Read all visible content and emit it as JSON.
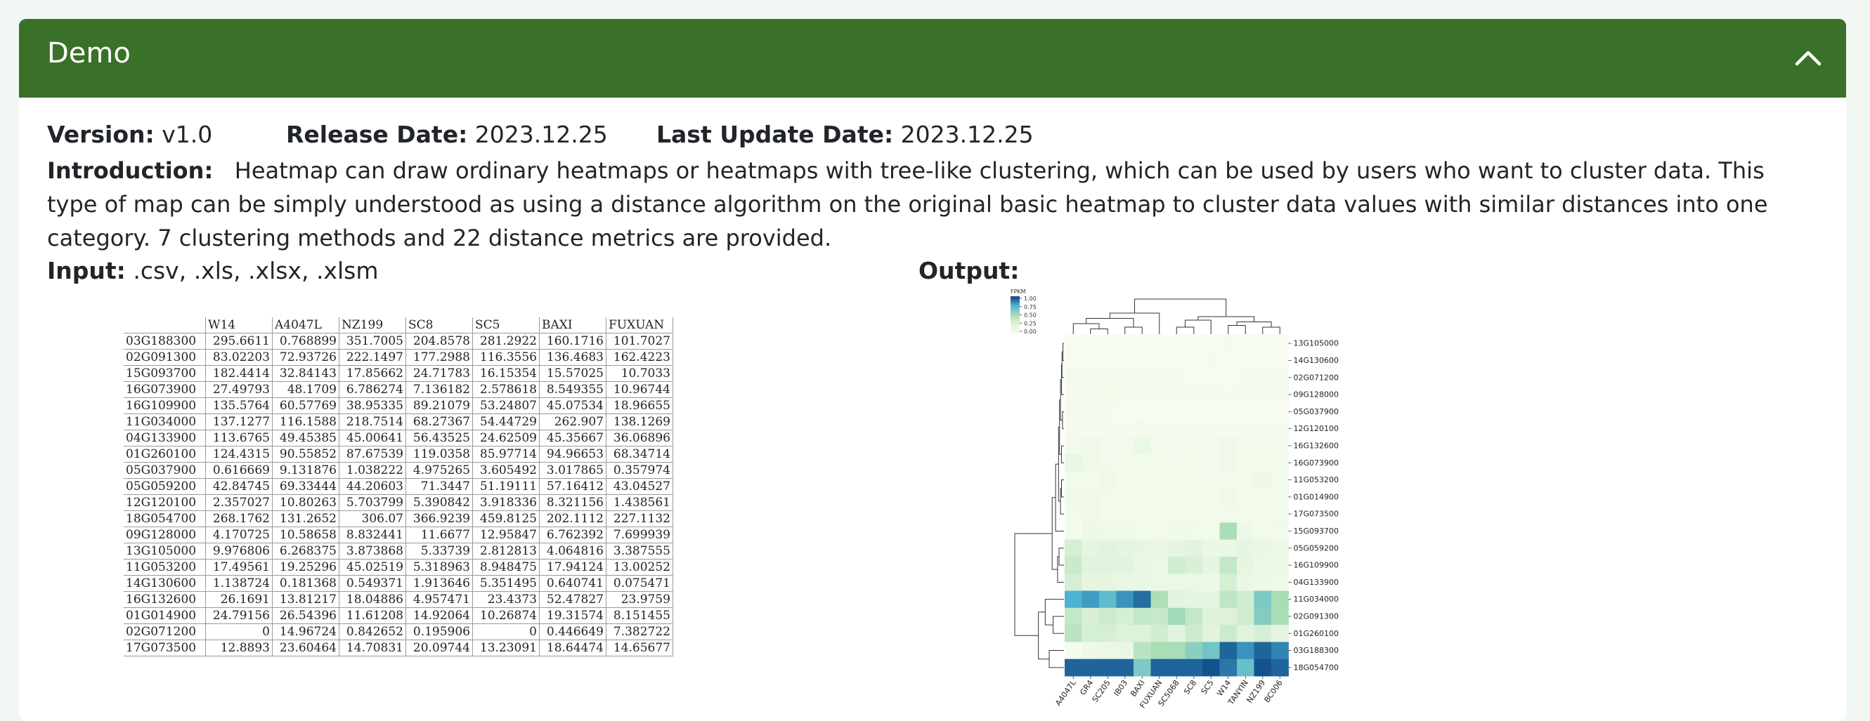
{
  "panel": {
    "title": "Demo"
  },
  "meta": {
    "version_label": "Version:",
    "version_value": "v1.0",
    "release_label": "Release Date:",
    "release_value": "2023.12.25",
    "update_label": "Last Update Date:",
    "update_value": "2023.12.25"
  },
  "intro": {
    "label": "Introduction:",
    "text": "Heatmap can draw ordinary heatmaps or heatmaps with tree-like clustering, which can be used by users who want to cluster data. This type of map can be simply understood as using a distance algorithm on the original basic heatmap to cluster data values with similar distances into one category. 7 clustering methods and 22 distance metrics are provided."
  },
  "input": {
    "label": "Input:",
    "formats": ".csv, .xls, .xlsx, .xlsm",
    "table": {
      "columns": [
        "W14",
        "A4047L",
        "NZ199",
        "SC8",
        "SC5",
        "BAXI",
        "FUXUAN"
      ],
      "rows": [
        [
          "03G188300",
          "295.6611",
          "0.768899",
          "351.7005",
          "204.8578",
          "281.2922",
          "160.1716",
          "101.7027"
        ],
        [
          "02G091300",
          "83.02203",
          "72.93726",
          "222.1497",
          "177.2988",
          "116.3556",
          "136.4683",
          "162.4223"
        ],
        [
          "15G093700",
          "182.4414",
          "32.84143",
          "17.85662",
          "24.71783",
          "16.15354",
          "15.57025",
          "10.7033"
        ],
        [
          "16G073900",
          "27.49793",
          "48.1709",
          "6.786274",
          "7.136182",
          "2.578618",
          "8.549355",
          "10.96744"
        ],
        [
          "16G109900",
          "135.5764",
          "60.57769",
          "38.95335",
          "89.21079",
          "53.24807",
          "45.07534",
          "18.96655"
        ],
        [
          "11G034000",
          "137.1277",
          "116.1588",
          "218.7514",
          "68.27367",
          "54.44729",
          "262.907",
          "138.1269"
        ],
        [
          "04G133900",
          "113.6765",
          "49.45385",
          "45.00641",
          "56.43525",
          "24.62509",
          "45.35667",
          "36.06896"
        ],
        [
          "01G260100",
          "124.4315",
          "90.55852",
          "87.67539",
          "119.0358",
          "85.97714",
          "94.96653",
          "68.34714"
        ],
        [
          "05G037900",
          "0.616669",
          "9.131876",
          "1.038222",
          "4.975265",
          "3.605492",
          "3.017865",
          "0.357974"
        ],
        [
          "05G059200",
          "42.84745",
          "69.33444",
          "44.20603",
          "71.3447",
          "51.19111",
          "57.16412",
          "43.04527"
        ],
        [
          "12G120100",
          "2.357027",
          "10.80263",
          "5.703799",
          "5.390842",
          "3.918336",
          "8.321156",
          "1.438561"
        ],
        [
          "18G054700",
          "268.1762",
          "131.2652",
          "306.07",
          "366.9239",
          "459.8125",
          "202.1112",
          "227.1132"
        ],
        [
          "09G128000",
          "4.170725",
          "10.58658",
          "8.832441",
          "11.6677",
          "12.95847",
          "6.762392",
          "7.699939"
        ],
        [
          "13G105000",
          "9.976806",
          "6.268375",
          "3.873868",
          "5.33739",
          "2.812813",
          "4.064816",
          "3.387555"
        ],
        [
          "11G053200",
          "17.49561",
          "19.25296",
          "45.02519",
          "5.318963",
          "8.948475",
          "17.94124",
          "13.00252"
        ],
        [
          "14G130600",
          "1.138724",
          "0.181368",
          "0.549371",
          "1.913646",
          "5.351495",
          "0.640741",
          "0.075471"
        ],
        [
          "16G132600",
          "26.1691",
          "13.81217",
          "18.04886",
          "4.957471",
          "23.4373",
          "52.47827",
          "23.9759"
        ],
        [
          "01G014900",
          "24.79156",
          "26.54396",
          "11.61208",
          "14.92064",
          "10.26874",
          "19.31574",
          "8.151455"
        ],
        [
          "02G071200",
          "0",
          "14.96724",
          "0.842652",
          "0.195906",
          "0",
          "0.446649",
          "7.382722"
        ],
        [
          "17G073500",
          "12.8893",
          "23.60464",
          "14.70831",
          "20.09744",
          "13.23091",
          "18.64474",
          "14.65677"
        ]
      ]
    }
  },
  "output": {
    "label": "Output:",
    "chart_data": {
      "type": "heatmap",
      "legend_title": "FPKM",
      "legend_ticks": [
        "1.00",
        "0.75",
        "0.50",
        "0.25",
        "0.00"
      ],
      "legend_placement": "top-left",
      "colormap": [
        "#f7fcf0",
        "#e0f3db",
        "#a8ddb5",
        "#4eb3d3",
        "#084081"
      ],
      "columns": [
        "A4047L",
        "GR4",
        "SC205",
        "IB03",
        "BAXI",
        "FUXUAN",
        "SC5068",
        "SC8",
        "SC5",
        "W14",
        "TANYIN",
        "NZ199",
        "BC006"
      ],
      "rows": [
        "13G105000",
        "14G130600",
        "02G071200",
        "09G128000",
        "05G037900",
        "12G120100",
        "16G132600",
        "16G073900",
        "11G053200",
        "01G014900",
        "17G073500",
        "15G093700",
        "05G059200",
        "16G109900",
        "04G133900",
        "11G034000",
        "02G091300",
        "01G260100",
        "03G188300",
        "18G054700"
      ],
      "values": [
        [
          0.01,
          0.01,
          0.01,
          0.01,
          0.01,
          0.01,
          0.01,
          0.01,
          0.01,
          0.02,
          0.01,
          0.01,
          0.01
        ],
        [
          0.01,
          0.01,
          0.01,
          0.01,
          0.01,
          0.01,
          0.01,
          0.01,
          0.02,
          0.01,
          0.01,
          0.01,
          0.01
        ],
        [
          0.05,
          0.02,
          0.03,
          0.02,
          0.02,
          0.03,
          0.02,
          0.01,
          0.01,
          0.01,
          0.02,
          0.02,
          0.02
        ],
        [
          0.02,
          0.02,
          0.03,
          0.03,
          0.02,
          0.02,
          0.03,
          0.03,
          0.03,
          0.02,
          0.02,
          0.03,
          0.02
        ],
        [
          0.03,
          0.02,
          0.02,
          0.01,
          0.01,
          0.01,
          0.01,
          0.01,
          0.01,
          0.01,
          0.01,
          0.01,
          0.01
        ],
        [
          0.02,
          0.02,
          0.02,
          0.02,
          0.03,
          0.02,
          0.02,
          0.02,
          0.02,
          0.02,
          0.02,
          0.02,
          0.02
        ],
        [
          0.05,
          0.08,
          0.05,
          0.06,
          0.12,
          0.06,
          0.05,
          0.04,
          0.06,
          0.08,
          0.06,
          0.06,
          0.05
        ],
        [
          0.15,
          0.08,
          0.06,
          0.05,
          0.04,
          0.04,
          0.03,
          0.03,
          0.02,
          0.08,
          0.04,
          0.03,
          0.04
        ],
        [
          0.05,
          0.06,
          0.08,
          0.06,
          0.05,
          0.06,
          0.06,
          0.03,
          0.03,
          0.06,
          0.05,
          0.1,
          0.05
        ],
        [
          0.07,
          0.08,
          0.06,
          0.06,
          0.06,
          0.05,
          0.06,
          0.05,
          0.04,
          0.08,
          0.05,
          0.04,
          0.06
        ],
        [
          0.05,
          0.08,
          0.06,
          0.06,
          0.06,
          0.06,
          0.06,
          0.06,
          0.05,
          0.05,
          0.06,
          0.05,
          0.06
        ],
        [
          0.04,
          0.1,
          0.08,
          0.07,
          0.05,
          0.05,
          0.07,
          0.06,
          0.05,
          0.48,
          0.1,
          0.06,
          0.06
        ],
        [
          0.3,
          0.2,
          0.22,
          0.2,
          0.18,
          0.14,
          0.18,
          0.22,
          0.14,
          0.15,
          0.18,
          0.14,
          0.1
        ],
        [
          0.35,
          0.22,
          0.22,
          0.22,
          0.16,
          0.12,
          0.32,
          0.28,
          0.18,
          0.38,
          0.18,
          0.12,
          0.1
        ],
        [
          0.3,
          0.18,
          0.18,
          0.16,
          0.14,
          0.12,
          0.12,
          0.12,
          0.1,
          0.3,
          0.14,
          0.1,
          0.09
        ],
        [
          0.75,
          0.8,
          0.7,
          0.82,
          0.9,
          0.48,
          0.22,
          0.2,
          0.18,
          0.4,
          0.32,
          0.62,
          0.5
        ],
        [
          0.38,
          0.28,
          0.34,
          0.3,
          0.38,
          0.36,
          0.52,
          0.38,
          0.26,
          0.26,
          0.32,
          0.6,
          0.48
        ],
        [
          0.42,
          0.3,
          0.3,
          0.26,
          0.26,
          0.32,
          0.22,
          0.34,
          0.22,
          0.34,
          0.24,
          0.3,
          0.2
        ],
        [
          0.02,
          0.1,
          0.12,
          0.14,
          0.42,
          0.5,
          0.5,
          0.58,
          0.65,
          0.92,
          0.82,
          0.92,
          0.85
        ],
        [
          0.92,
          0.92,
          0.92,
          0.92,
          0.62,
          0.92,
          0.92,
          0.92,
          0.96,
          0.88,
          0.68,
          0.96,
          0.92
        ]
      ]
    }
  }
}
